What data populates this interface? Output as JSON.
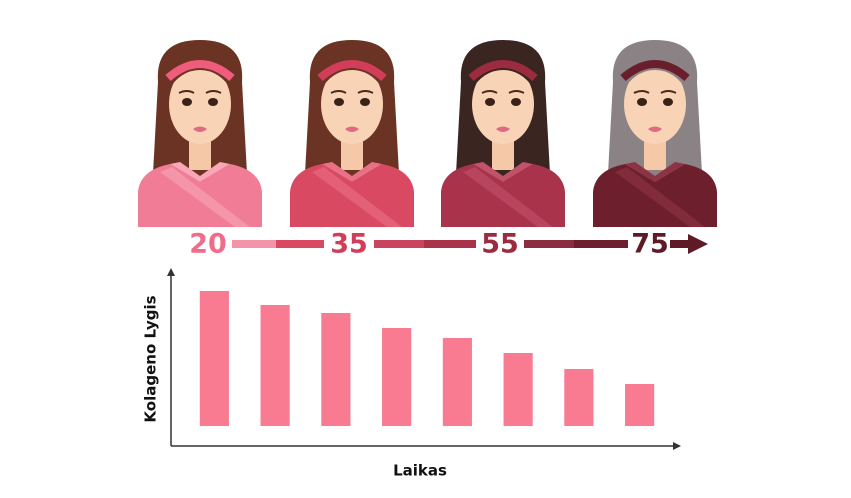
{
  "timeline": {
    "ages": [
      20,
      35,
      55,
      75
    ]
  },
  "chart_data": {
    "type": "bar",
    "x_label": "Laikas",
    "y_label": "Kolageno Lygis",
    "categories": [
      null,
      null,
      null,
      null,
      null,
      null,
      null,
      null
    ],
    "values": [
      135,
      121,
      113,
      98,
      88,
      73,
      57,
      42
    ],
    "color": "#f97b91",
    "ylim": [
      0,
      150
    ],
    "grid": false
  }
}
